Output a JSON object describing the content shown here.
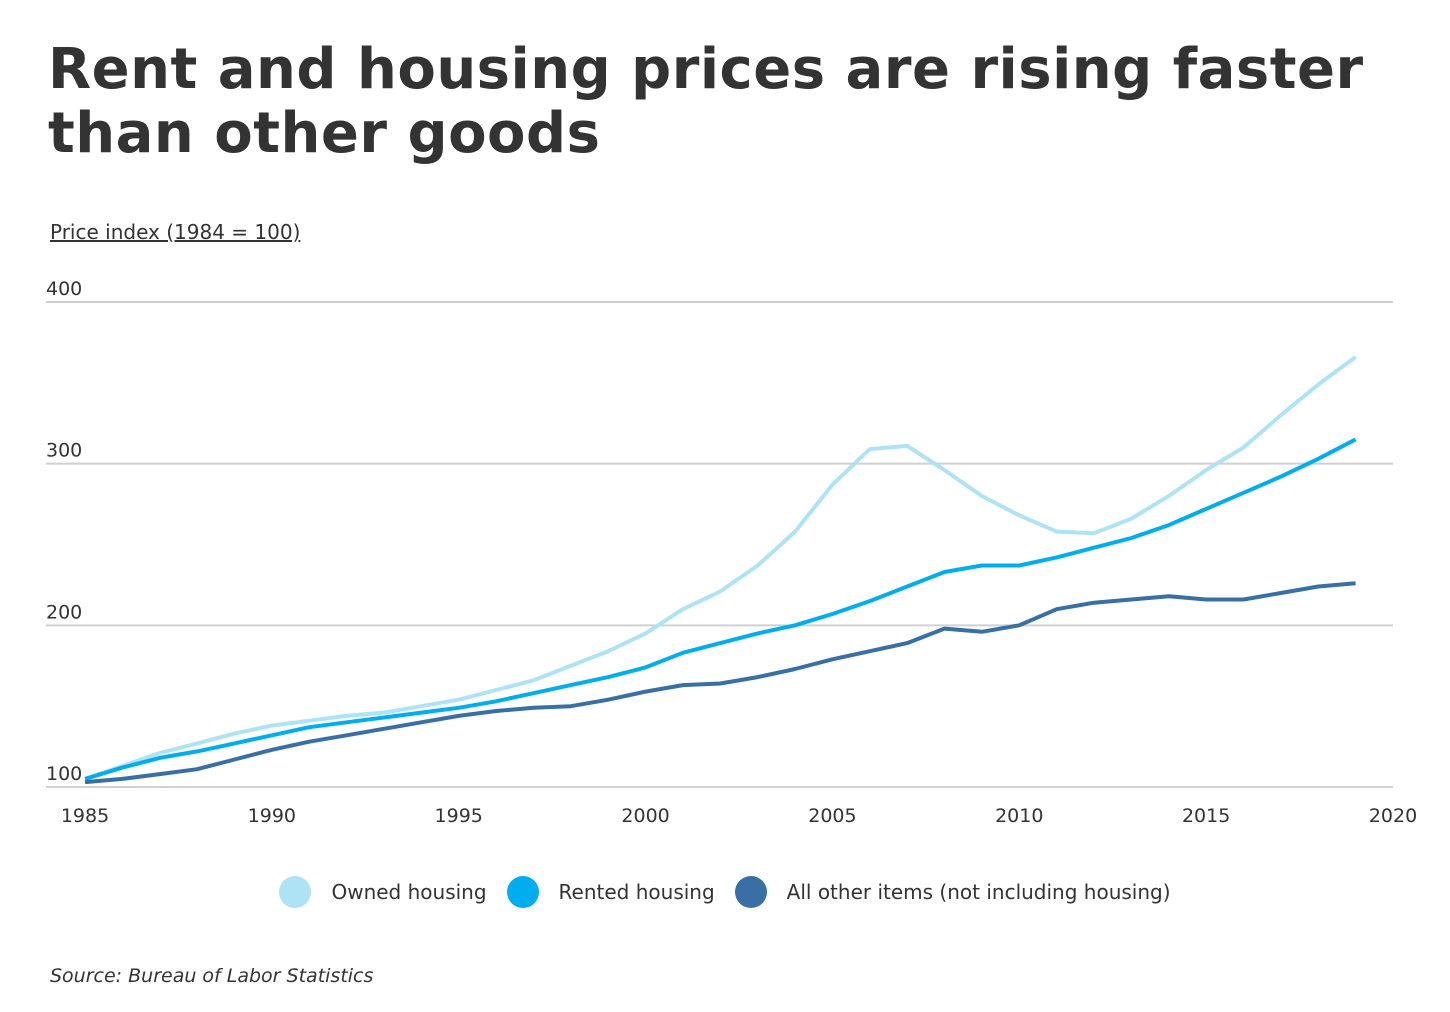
{
  "chart_data": {
    "type": "line",
    "title": "Rent and housing prices are rising faster than other goods",
    "ylabel": "Price index (1984 = 100)",
    "xlabel": "",
    "ylim": [
      100,
      400
    ],
    "xlim": [
      1985,
      2020
    ],
    "yticks": [
      100,
      200,
      300,
      400
    ],
    "xticks": [
      1985,
      1990,
      1995,
      2000,
      2005,
      2010,
      2015,
      2020
    ],
    "grid": "horizontal",
    "legend_placement": "bottom",
    "x": [
      1985,
      1986,
      1987,
      1988,
      1989,
      1990,
      1991,
      1992,
      1993,
      1994,
      1995,
      1996,
      1997,
      1998,
      1999,
      2000,
      2001,
      2002,
      2003,
      2004,
      2005,
      2006,
      2007,
      2008,
      2009,
      2010,
      2011,
      2012,
      2013,
      2014,
      2015,
      2016,
      2017,
      2018,
      2019
    ],
    "series": [
      {
        "name": "Owned housing",
        "color": "#ade3f5",
        "values": [
          105,
          113,
          121,
          127,
          133,
          138,
          141,
          144,
          146,
          150,
          154,
          160,
          166,
          175,
          184,
          195,
          210,
          221,
          237,
          258,
          287,
          309,
          311,
          296,
          280,
          268,
          258,
          257,
          266,
          280,
          296,
          310,
          330,
          349,
          366
        ]
      },
      {
        "name": "Rented housing",
        "color": "#00aeef",
        "values": [
          105,
          112,
          118,
          122,
          127,
          132,
          137,
          140,
          143,
          146,
          149,
          153,
          158,
          163,
          168,
          174,
          183,
          189,
          195,
          200,
          207,
          215,
          224,
          233,
          237,
          237,
          242,
          248,
          254,
          262,
          272,
          282,
          292,
          303,
          315
        ]
      },
      {
        "name": "All other items (not including housing)",
        "color": "#386fa4",
        "values": [
          103,
          105,
          108,
          111,
          117,
          123,
          128,
          132,
          136,
          140,
          144,
          147,
          149,
          150,
          154,
          159,
          163,
          164,
          168,
          173,
          179,
          184,
          189,
          198,
          196,
          200,
          210,
          214,
          216,
          218,
          216,
          216,
          220,
          224,
          226
        ]
      }
    ],
    "source": "Source:  Bureau of Labor Statistics"
  }
}
